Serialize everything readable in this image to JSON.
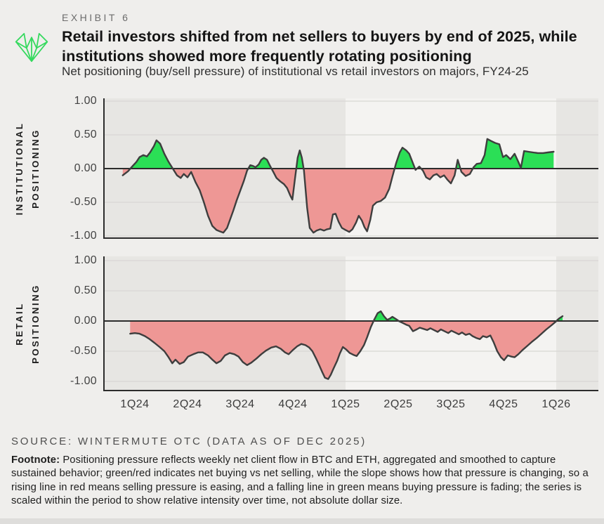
{
  "header": {
    "exhibit_label": "EXHIBIT 6",
    "title_lines": [
      "Retail investors shifted from net sellers to buyers by end of 2025, while",
      "institutions showed more frequently rotating positioning"
    ],
    "subtitle": "Net positioning (buy/sell pressure) of institutional vs retail investors on majors, FY24-25"
  },
  "source_line": "SOURCE: WINTERMUTE OTC (DATA AS OF DEC 2025)",
  "footnote": {
    "label": "Footnote:",
    "text": " Positioning pressure reflects weekly net client flow in BTC and ETH, aggregated and smoothed to capture sustained behavior; green/red indicates net buying vs net selling, while the slope shows how that pressure is changing, so a rising line in red means selling pressure is easing, and a falling line in green means buying pressure is fading; the series is scaled within the period to show relative intensity over time, not absolute dollar size."
  },
  "colors": {
    "page_bg": "#efeeec",
    "band_gray": "#e7e6e3",
    "band_light_2025": "#f4f3f1",
    "gridline": "#d8d7d4",
    "axis_dark": "#2c2c2c",
    "series_line": "#3e3e3e",
    "net_buying_green": "#2bdf56",
    "net_selling_red": "#ee9795",
    "logo_green": "#35d95e"
  },
  "chart_data": {
    "type": "area",
    "x_unit": "quarters since 1Q24 (weekly smoothed series)",
    "x_ticks": [
      "1Q24",
      "2Q24",
      "3Q24",
      "4Q24",
      "1Q25",
      "2Q25",
      "3Q25",
      "4Q25",
      "1Q26"
    ],
    "y_ticks": {
      "values": [
        1.0,
        0.5,
        0.0,
        -0.5,
        -1.0
      ],
      "labels": [
        "1.00",
        "0.50",
        "0.00",
        "-0.50",
        "-1.00"
      ]
    },
    "ylim": [
      -1.1,
      1.1
    ],
    "grid": true,
    "legend": "none",
    "highlight_band": {
      "from_tick": "1Q25",
      "to_tick": "1Q26",
      "from_q": 4,
      "to_q": 8
    },
    "fill_rule": "green above zero (net buying), red below zero (net selling)",
    "panels": [
      {
        "name": "institutional",
        "axis_label_line1": "INSTITUTIONAL",
        "axis_label_line2": "POSITIONING",
        "points": [
          [
            -0.23,
            -0.1
          ],
          [
            -0.13,
            -0.04
          ],
          [
            -0.05,
            0.03
          ],
          [
            0.03,
            0.1
          ],
          [
            0.09,
            0.17
          ],
          [
            0.16,
            0.2
          ],
          [
            0.23,
            0.18
          ],
          [
            0.29,
            0.24
          ],
          [
            0.36,
            0.33
          ],
          [
            0.41,
            0.42
          ],
          [
            0.48,
            0.37
          ],
          [
            0.56,
            0.22
          ],
          [
            0.64,
            0.1
          ],
          [
            0.72,
            0.0
          ],
          [
            0.8,
            -0.1
          ],
          [
            0.87,
            -0.14
          ],
          [
            0.93,
            -0.08
          ],
          [
            1.0,
            -0.13
          ],
          [
            1.07,
            -0.05
          ],
          [
            1.15,
            -0.2
          ],
          [
            1.23,
            -0.32
          ],
          [
            1.31,
            -0.5
          ],
          [
            1.39,
            -0.7
          ],
          [
            1.47,
            -0.85
          ],
          [
            1.55,
            -0.91
          ],
          [
            1.61,
            -0.93
          ],
          [
            1.68,
            -0.95
          ],
          [
            1.75,
            -0.88
          ],
          [
            1.81,
            -0.75
          ],
          [
            1.87,
            -0.62
          ],
          [
            1.93,
            -0.48
          ],
          [
            2.0,
            -0.33
          ],
          [
            2.07,
            -0.18
          ],
          [
            2.13,
            -0.03
          ],
          [
            2.19,
            0.05
          ],
          [
            2.24,
            0.04
          ],
          [
            2.29,
            0.02
          ],
          [
            2.35,
            0.06
          ],
          [
            2.4,
            0.13
          ],
          [
            2.45,
            0.16
          ],
          [
            2.51,
            0.13
          ],
          [
            2.56,
            0.05
          ],
          [
            2.63,
            -0.05
          ],
          [
            2.69,
            -0.14
          ],
          [
            2.76,
            -0.19
          ],
          [
            2.83,
            -0.23
          ],
          [
            2.89,
            -0.29
          ],
          [
            2.95,
            -0.4
          ],
          [
            2.99,
            -0.46
          ],
          [
            3.04,
            -0.15
          ],
          [
            3.09,
            0.16
          ],
          [
            3.13,
            0.27
          ],
          [
            3.17,
            0.16
          ],
          [
            3.21,
            -0.03
          ],
          [
            3.27,
            -0.58
          ],
          [
            3.32,
            -0.88
          ],
          [
            3.39,
            -0.95
          ],
          [
            3.45,
            -0.92
          ],
          [
            3.52,
            -0.9
          ],
          [
            3.59,
            -0.92
          ],
          [
            3.65,
            -0.9
          ],
          [
            3.71,
            -0.89
          ],
          [
            3.76,
            -0.68
          ],
          [
            3.81,
            -0.67
          ],
          [
            3.87,
            -0.79
          ],
          [
            3.93,
            -0.88
          ],
          [
            4.0,
            -0.91
          ],
          [
            4.07,
            -0.94
          ],
          [
            4.13,
            -0.9
          ],
          [
            4.2,
            -0.8
          ],
          [
            4.25,
            -0.7
          ],
          [
            4.31,
            -0.77
          ],
          [
            4.36,
            -0.87
          ],
          [
            4.41,
            -0.93
          ],
          [
            4.47,
            -0.76
          ],
          [
            4.52,
            -0.55
          ],
          [
            4.59,
            -0.5
          ],
          [
            4.67,
            -0.48
          ],
          [
            4.75,
            -0.43
          ],
          [
            4.83,
            -0.3
          ],
          [
            4.89,
            -0.12
          ],
          [
            4.96,
            0.08
          ],
          [
            5.03,
            0.24
          ],
          [
            5.08,
            0.31
          ],
          [
            5.15,
            0.27
          ],
          [
            5.21,
            0.22
          ],
          [
            5.27,
            0.1
          ],
          [
            5.33,
            -0.02
          ],
          [
            5.4,
            0.03
          ],
          [
            5.47,
            -0.03
          ],
          [
            5.53,
            -0.13
          ],
          [
            5.6,
            -0.16
          ],
          [
            5.67,
            -0.1
          ],
          [
            5.73,
            -0.08
          ],
          [
            5.8,
            -0.13
          ],
          [
            5.87,
            -0.1
          ],
          [
            5.93,
            -0.16
          ],
          [
            6.0,
            -0.22
          ],
          [
            6.07,
            -0.1
          ],
          [
            6.13,
            0.13
          ],
          [
            6.2,
            -0.05
          ],
          [
            6.28,
            -0.11
          ],
          [
            6.36,
            -0.08
          ],
          [
            6.43,
            0.02
          ],
          [
            6.49,
            0.07
          ],
          [
            6.57,
            0.08
          ],
          [
            6.64,
            0.2
          ],
          [
            6.69,
            0.44
          ],
          [
            6.76,
            0.41
          ],
          [
            6.84,
            0.38
          ],
          [
            6.92,
            0.36
          ],
          [
            6.99,
            0.17
          ],
          [
            7.05,
            0.2
          ],
          [
            7.13,
            0.14
          ],
          [
            7.21,
            0.22
          ],
          [
            7.28,
            0.1
          ],
          [
            7.33,
            0.01
          ],
          [
            7.39,
            0.26
          ],
          [
            7.47,
            0.25
          ],
          [
            7.56,
            0.24
          ],
          [
            7.65,
            0.23
          ],
          [
            7.75,
            0.23
          ],
          [
            7.84,
            0.24
          ],
          [
            7.95,
            0.25
          ]
        ]
      },
      {
        "name": "retail",
        "axis_label_line1": "RETAIL",
        "axis_label_line2": "POSITIONING",
        "points": [
          [
            -0.09,
            -0.21
          ],
          [
            0.0,
            -0.2
          ],
          [
            0.09,
            -0.21
          ],
          [
            0.19,
            -0.25
          ],
          [
            0.28,
            -0.3
          ],
          [
            0.37,
            -0.36
          ],
          [
            0.47,
            -0.43
          ],
          [
            0.56,
            -0.5
          ],
          [
            0.64,
            -0.6
          ],
          [
            0.71,
            -0.7
          ],
          [
            0.77,
            -0.64
          ],
          [
            0.85,
            -0.71
          ],
          [
            0.93,
            -0.68
          ],
          [
            1.01,
            -0.59
          ],
          [
            1.11,
            -0.55
          ],
          [
            1.2,
            -0.52
          ],
          [
            1.29,
            -0.52
          ],
          [
            1.39,
            -0.57
          ],
          [
            1.47,
            -0.64
          ],
          [
            1.55,
            -0.7
          ],
          [
            1.63,
            -0.66
          ],
          [
            1.71,
            -0.57
          ],
          [
            1.8,
            -0.53
          ],
          [
            1.89,
            -0.55
          ],
          [
            1.97,
            -0.59
          ],
          [
            2.05,
            -0.68
          ],
          [
            2.13,
            -0.73
          ],
          [
            2.21,
            -0.69
          ],
          [
            2.31,
            -0.62
          ],
          [
            2.4,
            -0.55
          ],
          [
            2.49,
            -0.49
          ],
          [
            2.59,
            -0.44
          ],
          [
            2.68,
            -0.42
          ],
          [
            2.77,
            -0.46
          ],
          [
            2.85,
            -0.52
          ],
          [
            2.92,
            -0.55
          ],
          [
            3.0,
            -0.48
          ],
          [
            3.08,
            -0.42
          ],
          [
            3.16,
            -0.38
          ],
          [
            3.24,
            -0.4
          ],
          [
            3.31,
            -0.44
          ],
          [
            3.37,
            -0.5
          ],
          [
            3.44,
            -0.62
          ],
          [
            3.51,
            -0.75
          ],
          [
            3.56,
            -0.85
          ],
          [
            3.61,
            -0.94
          ],
          [
            3.67,
            -0.96
          ],
          [
            3.72,
            -0.89
          ],
          [
            3.77,
            -0.79
          ],
          [
            3.84,
            -0.66
          ],
          [
            3.89,
            -0.54
          ],
          [
            3.95,
            -0.43
          ],
          [
            4.01,
            -0.47
          ],
          [
            4.08,
            -0.53
          ],
          [
            4.15,
            -0.56
          ],
          [
            4.21,
            -0.58
          ],
          [
            4.28,
            -0.5
          ],
          [
            4.35,
            -0.4
          ],
          [
            4.41,
            -0.27
          ],
          [
            4.48,
            -0.1
          ],
          [
            4.55,
            0.03
          ],
          [
            4.61,
            0.13
          ],
          [
            4.67,
            0.16
          ],
          [
            4.73,
            0.08
          ],
          [
            4.79,
            0.02
          ],
          [
            4.84,
            0.04
          ],
          [
            4.89,
            0.07
          ],
          [
            4.96,
            0.03
          ],
          [
            5.01,
            0.0
          ],
          [
            5.08,
            -0.03
          ],
          [
            5.15,
            -0.06
          ],
          [
            5.21,
            -0.08
          ],
          [
            5.28,
            -0.17
          ],
          [
            5.35,
            -0.14
          ],
          [
            5.41,
            -0.11
          ],
          [
            5.48,
            -0.13
          ],
          [
            5.55,
            -0.15
          ],
          [
            5.61,
            -0.12
          ],
          [
            5.68,
            -0.15
          ],
          [
            5.75,
            -0.18
          ],
          [
            5.81,
            -0.14
          ],
          [
            5.88,
            -0.17
          ],
          [
            5.95,
            -0.2
          ],
          [
            6.01,
            -0.16
          ],
          [
            6.08,
            -0.19
          ],
          [
            6.15,
            -0.22
          ],
          [
            6.21,
            -0.19
          ],
          [
            6.28,
            -0.23
          ],
          [
            6.35,
            -0.21
          ],
          [
            6.41,
            -0.25
          ],
          [
            6.48,
            -0.28
          ],
          [
            6.55,
            -0.3
          ],
          [
            6.61,
            -0.25
          ],
          [
            6.68,
            -0.27
          ],
          [
            6.75,
            -0.24
          ],
          [
            6.81,
            -0.35
          ],
          [
            6.88,
            -0.5
          ],
          [
            6.95,
            -0.6
          ],
          [
            7.01,
            -0.65
          ],
          [
            7.08,
            -0.57
          ],
          [
            7.15,
            -0.59
          ],
          [
            7.21,
            -0.6
          ],
          [
            7.28,
            -0.55
          ],
          [
            7.36,
            -0.48
          ],
          [
            7.44,
            -0.42
          ],
          [
            7.53,
            -0.35
          ],
          [
            7.63,
            -0.28
          ],
          [
            7.72,
            -0.21
          ],
          [
            7.81,
            -0.14
          ],
          [
            7.91,
            -0.07
          ],
          [
            7.99,
            -0.01
          ],
          [
            8.05,
            0.04
          ],
          [
            8.12,
            0.08
          ]
        ]
      }
    ]
  }
}
